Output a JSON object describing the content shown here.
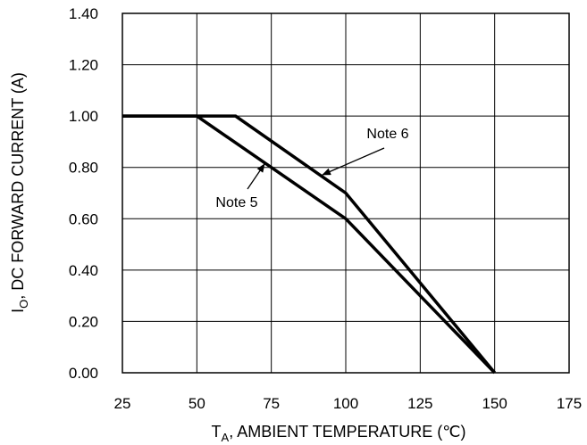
{
  "chart_data": {
    "type": "line",
    "xlabel_main": "T",
    "xlabel_sub": "A",
    "xlabel_rest": ", AMBIENT TEMPERATURE (℃)",
    "ylabel_main": "I",
    "ylabel_sub": "O",
    "ylabel_rest": ", DC FORWARD CURRENT (A)",
    "xlim": [
      25,
      175
    ],
    "ylim": [
      0.0,
      1.4
    ],
    "xticks": [
      25,
      50,
      75,
      100,
      125,
      150,
      175
    ],
    "xtick_labels": [
      "25",
      "50",
      "75",
      "100",
      "125",
      "150",
      "175"
    ],
    "yticks": [
      0.0,
      0.2,
      0.4,
      0.6,
      0.8,
      1.0,
      1.2,
      1.4
    ],
    "ytick_labels": [
      "0.00",
      "0.20",
      "0.40",
      "0.60",
      "0.80",
      "1.00",
      "1.20",
      "1.40"
    ],
    "grid": true,
    "legend": "none",
    "series": [
      {
        "name": "Note 5",
        "x": [
          25,
          50,
          100,
          150
        ],
        "y": [
          1.0,
          1.0,
          0.6,
          0.0
        ]
      },
      {
        "name": "Note 6",
        "x": [
          25,
          63,
          100,
          150
        ],
        "y": [
          1.0,
          1.0,
          0.7,
          0.0
        ]
      }
    ],
    "annotations": [
      {
        "text": "Note 5",
        "series": 0
      },
      {
        "text": "Note 6",
        "series": 1
      }
    ],
    "line_color": "#000000",
    "grid_color": "#000000"
  }
}
